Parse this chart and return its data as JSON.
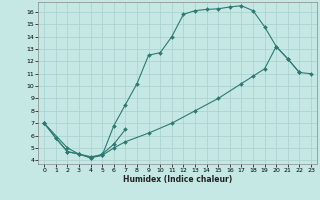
{
  "bg_color": "#c5e8e5",
  "grid_color": "#a8d0cc",
  "line_color": "#2d7a72",
  "xlabel": "Humidex (Indice chaleur)",
  "xlim": [
    -0.5,
    23.5
  ],
  "ylim_min": 3.7,
  "ylim_max": 16.8,
  "yticks": [
    4,
    5,
    6,
    7,
    8,
    9,
    10,
    11,
    12,
    13,
    14,
    15,
    16
  ],
  "xticks": [
    0,
    1,
    2,
    3,
    4,
    5,
    6,
    7,
    8,
    9,
    10,
    11,
    12,
    13,
    14,
    15,
    16,
    17,
    18,
    19,
    20,
    21,
    22,
    23
  ],
  "curve1_x": [
    0,
    1,
    2,
    3,
    4,
    5,
    6,
    7,
    8,
    9,
    10,
    11,
    12,
    13,
    14,
    15,
    16,
    17,
    18,
    19,
    20,
    21,
    22
  ],
  "curve1_y": [
    7.0,
    5.8,
    4.7,
    4.5,
    4.2,
    4.4,
    6.8,
    8.5,
    10.2,
    12.5,
    12.7,
    14.0,
    15.8,
    16.1,
    16.2,
    16.25,
    16.4,
    16.5,
    16.1,
    14.8,
    13.2,
    12.2,
    11.1
  ],
  "curve2_x": [
    0,
    1,
    2,
    3,
    4,
    5,
    6,
    7
  ],
  "curve2_y": [
    7.0,
    5.8,
    4.7,
    4.5,
    4.2,
    4.5,
    5.3,
    6.5
  ],
  "curve3_x": [
    0,
    2,
    3,
    4,
    5,
    6,
    7,
    9,
    11,
    13,
    15,
    17,
    18,
    19,
    20,
    21,
    22,
    23
  ],
  "curve3_y": [
    7.0,
    5.0,
    4.5,
    4.3,
    4.4,
    5.0,
    5.5,
    6.2,
    7.0,
    8.0,
    9.0,
    10.2,
    10.8,
    11.4,
    13.2,
    12.2,
    11.1,
    11.0
  ]
}
